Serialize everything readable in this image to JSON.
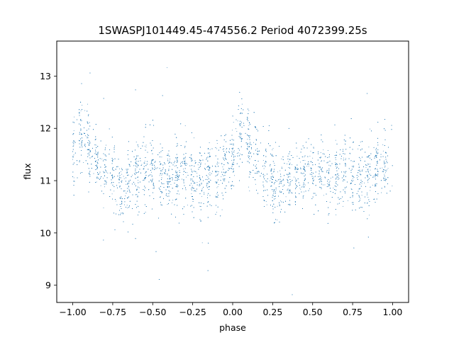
{
  "chart_data": {
    "type": "scatter",
    "title": "1SWASPJ101449.45-474556.2 Period 4072399.25s",
    "xlabel": "phase",
    "ylabel": "flux",
    "xlim": [
      -1.1,
      1.1
    ],
    "ylim": [
      8.67,
      13.67
    ],
    "xticks": [
      -1.0,
      -0.75,
      -0.5,
      -0.25,
      0.0,
      0.25,
      0.5,
      0.75,
      1.0
    ],
    "xtick_labels": [
      "−1.00",
      "−0.75",
      "−0.50",
      "−0.25",
      "0.00",
      "0.25",
      "0.50",
      "0.75",
      "1.00"
    ],
    "yticks": [
      9,
      10,
      11,
      12,
      13
    ],
    "ytick_labels": [
      "9",
      "10",
      "11",
      "12",
      "13"
    ],
    "grid": false,
    "legend": "none",
    "point_color": "#1f77b4",
    "profile_phase": [
      0.0,
      0.05,
      0.1,
      0.15,
      0.2,
      0.25,
      0.3,
      0.35,
      0.4,
      0.45,
      0.5,
      0.55,
      0.6,
      0.65,
      0.7,
      0.75,
      0.8,
      0.85,
      0.9,
      0.95,
      1.0
    ],
    "profile_flux_mean": [
      11.45,
      11.95,
      11.7,
      11.35,
      11.15,
      11.0,
      10.85,
      11.0,
      11.1,
      11.15,
      11.25,
      11.15,
      11.05,
      11.1,
      11.2,
      11.05,
      11.0,
      11.1,
      11.2,
      11.3,
      11.45
    ]
  }
}
